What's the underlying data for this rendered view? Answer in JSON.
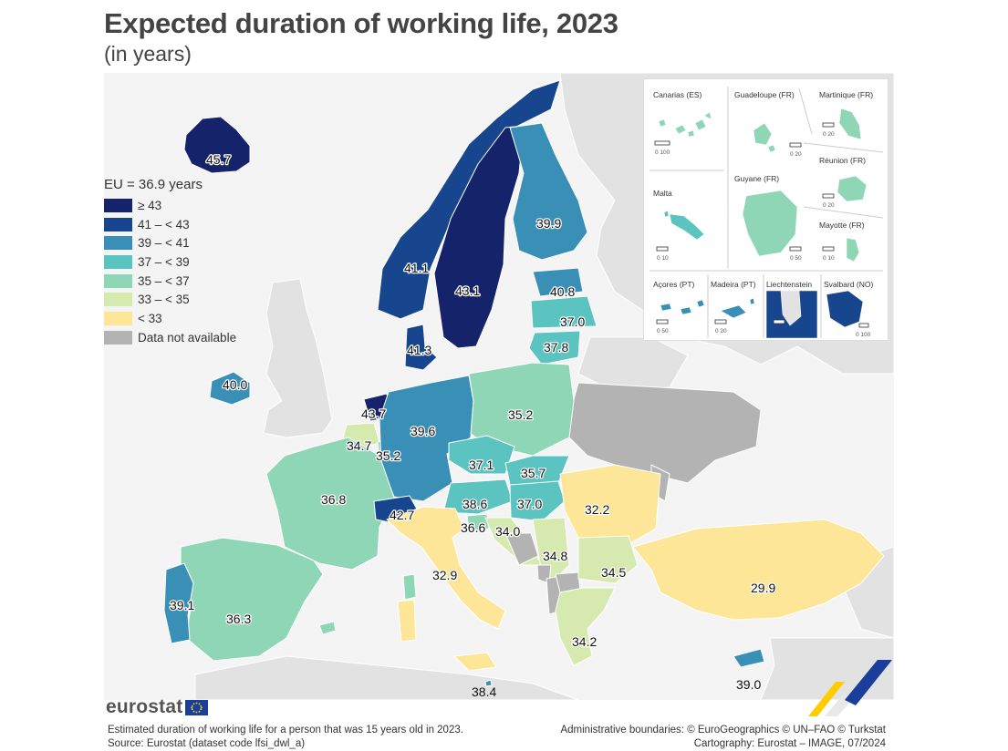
{
  "title": "Expected duration of working life, 2023",
  "subtitle": "(in years)",
  "legend": {
    "eu_value": "EU = 36.9 years",
    "classes": [
      {
        "label": "≥ 43",
        "color": "#15236b"
      },
      {
        "label": "41 – < 43",
        "color": "#17468f"
      },
      {
        "label": "39 – < 41",
        "color": "#3a8fb7"
      },
      {
        "label": "37 – < 39",
        "color": "#5bc4c1"
      },
      {
        "label": "35 – < 37",
        "color": "#8fd6b7"
      },
      {
        "label": "33 – < 35",
        "color": "#d6e9ae"
      },
      {
        "label": "< 33",
        "color": "#fde698"
      },
      {
        "label": "Data not available",
        "color": "#b3b3b3"
      }
    ]
  },
  "map_data": {
    "Iceland": "45.7",
    "Norway": "41.1",
    "Sweden": "43.1",
    "Finland": "39.9",
    "Estonia": "40.8",
    "Latvia": "37.0",
    "Lithuania": "37.8",
    "Denmark": "41.3",
    "Ireland": "40.0",
    "Netherlands": "43.7",
    "Belgium": "34.7",
    "Luxembourg": "35.2",
    "Germany": "39.6",
    "Poland": "35.2",
    "Czechia": "37.1",
    "Slovakia": "35.7",
    "Austria": "38.6",
    "Hungary": "37.0",
    "Slovenia": "36.6",
    "Croatia": "34.0",
    "Romania": "32.2",
    "Serbia": "34.8",
    "Bulgaria": "34.5",
    "France": "36.8",
    "Switzerland": "42.7",
    "Italy": "32.9",
    "Portugal": "39.1",
    "Spain": "36.3",
    "Greece": "34.2",
    "Türkiye": "29.9",
    "Malta": "38.4",
    "Cyprus": "39.0"
  },
  "insets": {
    "canarias": {
      "name": "Canarias (ES)",
      "scale": "0   100"
    },
    "guadeloupe": {
      "name": "Guadeloupe (FR)",
      "scale": "0   20"
    },
    "martinique": {
      "name": "Martinique (FR)",
      "scale": "0   20"
    },
    "reunion": {
      "name": "Réunion (FR)",
      "scale": "0   20"
    },
    "malta": {
      "name": "Malta",
      "scale": "0   10"
    },
    "guyane": {
      "name": "Guyane (FR)",
      "scale": "0 50"
    },
    "mayotte": {
      "name": "Mayotte (FR)",
      "scale": "0   10"
    },
    "acores": {
      "name": "Açores (PT)",
      "scale": "0   50"
    },
    "madeira": {
      "name": "Madeira (PT)",
      "scale": "0   20"
    },
    "liechtenstein": {
      "name": "Liechtenstein",
      "scale": "0   5"
    },
    "svalbard": {
      "name": "Svalbard (NO)",
      "scale": "0 100"
    }
  },
  "branding": {
    "logo": "eurostat"
  },
  "footer": {
    "note": "Estimated duration of working life for a person that was 15 years old in 2023.",
    "source": "Source: Eurostat (dataset code lfsi_dwl_a)",
    "boundaries": "Administrative boundaries: © EuroGeographics © UN–FAO © Turkstat",
    "cartography": "Cartography: Eurostat – IMAGE, 07/2024"
  }
}
